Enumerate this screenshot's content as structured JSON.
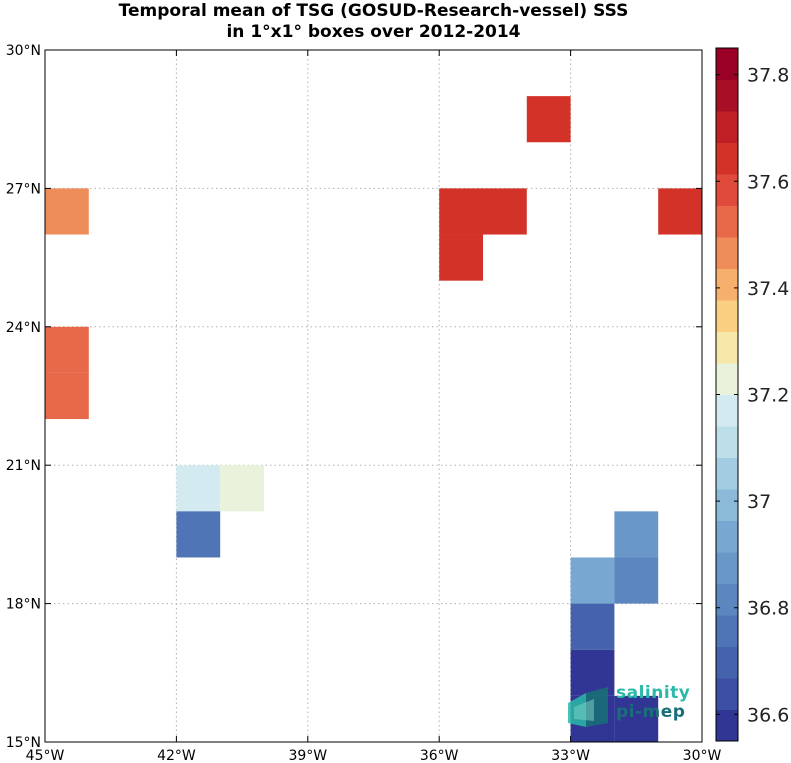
{
  "chart_data": {
    "type": "heatmap",
    "title_line1": "Temporal mean of TSG (GOSUD-Research-vessel) SSS",
    "title_line2": "in 1°x1° boxes over 2012-2014",
    "xlim": [
      -45,
      -30
    ],
    "ylim": [
      15,
      30
    ],
    "x_ticks": [
      {
        "value": -45,
        "label": "45°W"
      },
      {
        "value": -42,
        "label": "42°W"
      },
      {
        "value": -39,
        "label": "39°W"
      },
      {
        "value": -36,
        "label": "36°W"
      },
      {
        "value": -33,
        "label": "33°W"
      },
      {
        "value": -30,
        "label": "30°W"
      }
    ],
    "y_ticks": [
      {
        "value": 15,
        "label": "15°N"
      },
      {
        "value": 18,
        "label": "18°N"
      },
      {
        "value": 21,
        "label": "21°N"
      },
      {
        "value": 24,
        "label": "24°N"
      },
      {
        "value": 27,
        "label": "27°N"
      },
      {
        "value": 30,
        "label": "30°N"
      }
    ],
    "grid": true,
    "colorbar": {
      "vmin": 36.55,
      "vmax": 37.85,
      "colors": [
        "#313695",
        "#3c4fa5",
        "#4563ad",
        "#4f75b6",
        "#5b86bf",
        "#6897c8",
        "#78a8d1",
        "#8bbad9",
        "#a2cce2",
        "#bcdfea",
        "#d3ebf0",
        "#e9f3dc",
        "#f7e7a8",
        "#f9cf82",
        "#f6af6c",
        "#ef8d5a",
        "#e8694a",
        "#df4a3b",
        "#d23228",
        "#bf1f25",
        "#a80f26",
        "#9a0026"
      ],
      "tick_labels": [
        {
          "value": 36.6,
          "label": "36.6"
        },
        {
          "value": 36.8,
          "label": "36.8"
        },
        {
          "value": 37.0,
          "label": "37"
        },
        {
          "value": 37.2,
          "label": "37.2"
        },
        {
          "value": 37.4,
          "label": "37.4"
        },
        {
          "value": 37.6,
          "label": "37.6"
        },
        {
          "value": 37.8,
          "label": "37.8"
        }
      ]
    },
    "cells": [
      {
        "lon": -45,
        "lat": 26,
        "sss": 37.45
      },
      {
        "lon": -45,
        "lat": 22,
        "sss": 37.5
      },
      {
        "lon": -45,
        "lat": 23,
        "sss": 37.5
      },
      {
        "lon": -34,
        "lat": 28,
        "sss": 37.62
      },
      {
        "lon": -36,
        "lat": 26,
        "sss": 37.62
      },
      {
        "lon": -35,
        "lat": 26,
        "sss": 37.62
      },
      {
        "lon": -36,
        "lat": 25,
        "sss": 37.62
      },
      {
        "lon": -31,
        "lat": 26,
        "sss": 37.62
      },
      {
        "lon": -42,
        "lat": 20,
        "sss": 37.16
      },
      {
        "lon": -41,
        "lat": 20,
        "sss": 37.22
      },
      {
        "lon": -42,
        "lat": 19,
        "sss": 36.78
      },
      {
        "lon": -32,
        "lat": 19,
        "sss": 36.85
      },
      {
        "lon": -33,
        "lat": 18,
        "sss": 36.95
      },
      {
        "lon": -32,
        "lat": 18,
        "sss": 36.8
      },
      {
        "lon": -33,
        "lat": 17,
        "sss": 36.72
      },
      {
        "lon": -33,
        "lat": 16,
        "sss": 36.58
      },
      {
        "lon": -33,
        "lat": 15,
        "sss": 36.58
      },
      {
        "lon": -32,
        "lat": 15,
        "sss": 36.6
      }
    ]
  },
  "logo": {
    "word1": "salinity",
    "word2": "pi-mep",
    "color1": "#2bb9a8",
    "color2": "#1a6e78"
  }
}
